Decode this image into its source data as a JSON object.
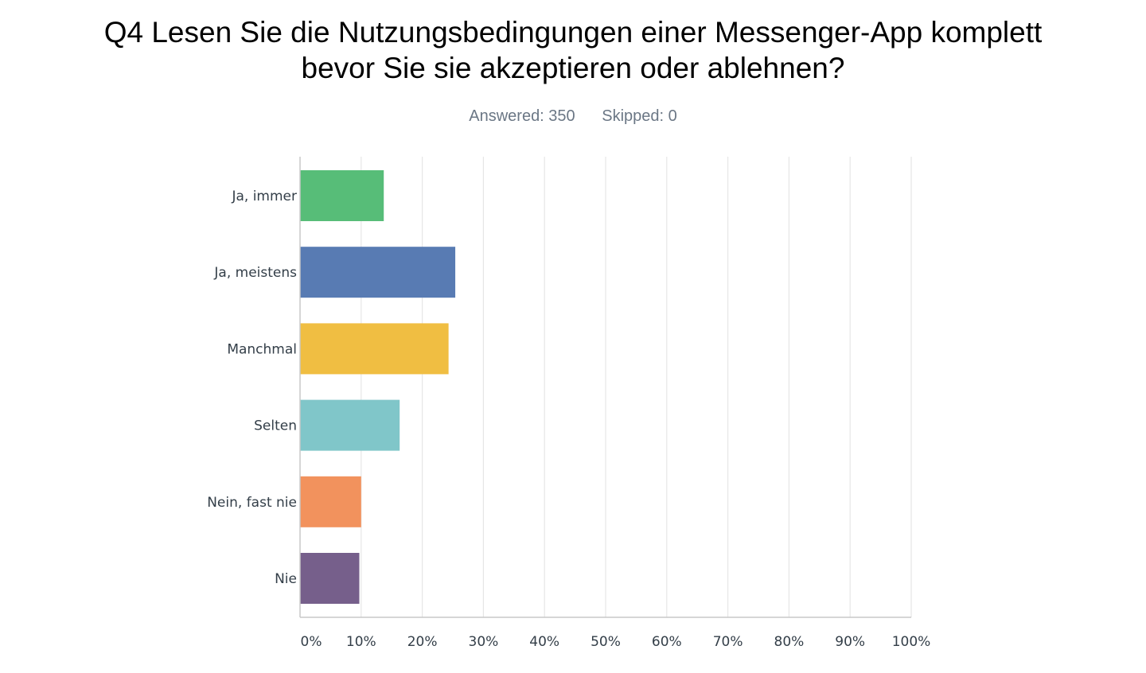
{
  "chart_data": {
    "type": "bar",
    "orientation": "horizontal",
    "title_lines": [
      "Q4 Lesen Sie die Nutzungsbedingungen einer Messenger-App komplett",
      "bevor Sie sie akzeptieren oder ablehnen?"
    ],
    "answered": "Answered: 350",
    "skipped": "Skipped: 0",
    "categories": [
      "Ja, immer",
      "Ja, meistens",
      "Manchmal",
      "Selten",
      "Nein, fast nie",
      "Nie"
    ],
    "values": [
      13.7,
      25.4,
      24.3,
      16.3,
      10.0,
      9.7
    ],
    "colors": [
      "#57bd78",
      "#587bb3",
      "#f0be42",
      "#80c6c9",
      "#f2925d",
      "#765f8b"
    ],
    "xlim": [
      0,
      100
    ],
    "xticks": [
      "0%",
      "10%",
      "20%",
      "30%",
      "40%",
      "50%",
      "60%",
      "70%",
      "80%",
      "90%",
      "100%"
    ],
    "grid": true,
    "legend": "none"
  }
}
